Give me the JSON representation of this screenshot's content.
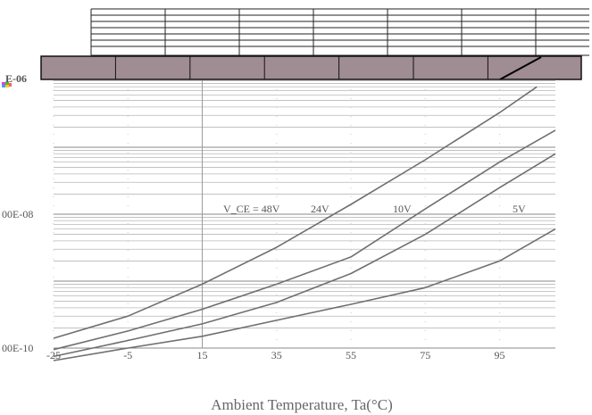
{
  "chart_data": {
    "type": "line",
    "title": "",
    "xlabel": "Ambient Temperature, Ta(°C)",
    "ylabel": "",
    "x_ticks": [
      "-25",
      "-5",
      "15",
      "35",
      "55",
      "75",
      "95"
    ],
    "y_ticks": [
      "E-06",
      "00E-08",
      "00E-10"
    ],
    "xlim": [
      -25,
      110
    ],
    "ylim_log10": [
      -10,
      -6
    ],
    "y_scale": "log",
    "grid": true,
    "series": [
      {
        "name": "V_CE=48V",
        "label": "V_CE = 48V",
        "x": [
          -25,
          -5,
          15,
          35,
          55,
          75,
          95,
          105
        ],
        "y": [
          1.4e-10,
          3e-10,
          9e-10,
          3.2e-09,
          1.4e-08,
          6.5e-08,
          3.3e-07,
          8e-07
        ]
      },
      {
        "name": "24V",
        "label": "24V",
        "x": [
          -25,
          -5,
          15,
          35,
          55,
          75,
          95,
          110
        ],
        "y": [
          9.5e-11,
          1.8e-10,
          3.8e-10,
          9e-10,
          2.3e-09,
          1.2e-08,
          6e-08,
          1.8e-07
        ]
      },
      {
        "name": "10V",
        "label": "10V",
        "x": [
          -25,
          -5,
          15,
          35,
          55,
          75,
          95,
          110
        ],
        "y": [
          7.5e-11,
          1.3e-10,
          2.3e-10,
          4.8e-10,
          1.3e-09,
          5e-09,
          2.5e-08,
          8e-08
        ]
      },
      {
        "name": "5V",
        "label": "5V",
        "x": [
          -25,
          -5,
          15,
          35,
          55,
          75,
          95,
          110
        ],
        "y": [
          6.5e-11,
          1e-10,
          1.5e-10,
          2.6e-10,
          4.5e-10,
          8e-10,
          2e-09,
          6e-09
        ]
      }
    ]
  }
}
